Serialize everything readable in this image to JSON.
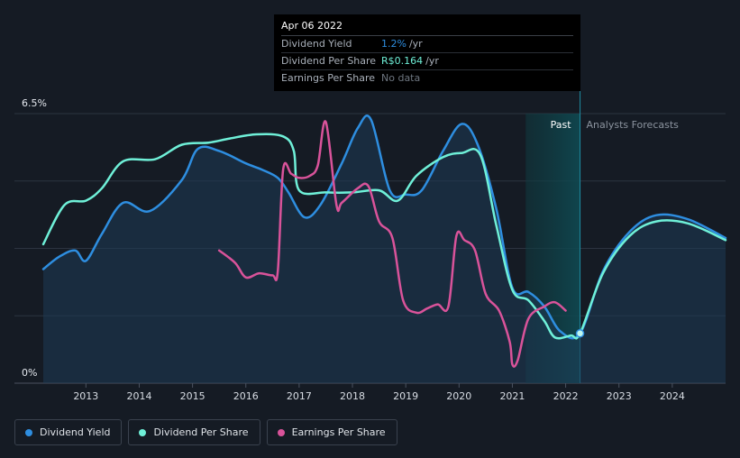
{
  "tooltip": {
    "date": "Apr 06 2022",
    "rows": [
      {
        "name": "Dividend Yield",
        "value": "1.2%",
        "unit": "/yr",
        "color": "#2e8ee0"
      },
      {
        "name": "Dividend Per Share",
        "value": "R$0.164",
        "unit": "/yr",
        "color": "#6ff0d8"
      },
      {
        "name": "Earnings Per Share",
        "value": "No data",
        "unit": "",
        "color": "#6e7680"
      }
    ]
  },
  "regions": {
    "past_label": "Past",
    "forecast_label": "Analysts Forecasts"
  },
  "legend": [
    {
      "label": "Dividend Yield",
      "color": "#2e8ee0"
    },
    {
      "label": "Dividend Per Share",
      "color": "#6ff0d8"
    },
    {
      "label": "Earnings Per Share",
      "color": "#d9539a"
    }
  ],
  "chart_data": {
    "type": "line",
    "y_axis_labels": {
      "top": "6.5%",
      "bottom": "0%"
    },
    "ylim": [
      0,
      6.5
    ],
    "xlim": [
      2012.2,
      2025.0
    ],
    "x_ticks": [
      "2013",
      "2014",
      "2015",
      "2016",
      "2017",
      "2018",
      "2019",
      "2020",
      "2021",
      "2022",
      "2023",
      "2024"
    ],
    "past_region": [
      2021.25,
      2022.27
    ],
    "grid": true,
    "legend_position": "bottom-left",
    "series": [
      {
        "name": "Dividend Yield",
        "color": "#2e8ee0",
        "area": true,
        "points": [
          [
            2012.2,
            2.75
          ],
          [
            2012.5,
            3.05
          ],
          [
            2012.8,
            3.2
          ],
          [
            2013.0,
            2.95
          ],
          [
            2013.3,
            3.6
          ],
          [
            2013.7,
            4.35
          ],
          [
            2014.2,
            4.15
          ],
          [
            2014.8,
            4.9
          ],
          [
            2015.1,
            5.65
          ],
          [
            2015.5,
            5.6
          ],
          [
            2016.0,
            5.3
          ],
          [
            2016.3,
            5.15
          ],
          [
            2016.6,
            4.95
          ],
          [
            2016.8,
            4.6
          ],
          [
            2017.1,
            4.0
          ],
          [
            2017.4,
            4.3
          ],
          [
            2017.8,
            5.3
          ],
          [
            2018.1,
            6.15
          ],
          [
            2018.35,
            6.35
          ],
          [
            2018.7,
            4.65
          ],
          [
            2019.0,
            4.55
          ],
          [
            2019.3,
            4.65
          ],
          [
            2019.7,
            5.6
          ],
          [
            2020.05,
            6.25
          ],
          [
            2020.35,
            5.75
          ],
          [
            2020.7,
            4.2
          ],
          [
            2021.0,
            2.3
          ],
          [
            2021.3,
            2.2
          ],
          [
            2021.6,
            1.85
          ],
          [
            2021.9,
            1.25
          ],
          [
            2022.27,
            1.2
          ],
          [
            2022.7,
            2.7
          ],
          [
            2023.2,
            3.65
          ],
          [
            2023.7,
            4.05
          ],
          [
            2024.3,
            3.95
          ],
          [
            2025.0,
            3.5
          ]
        ]
      },
      {
        "name": "Dividend Per Share",
        "color": "#6ff0d8",
        "area": false,
        "points": [
          [
            2012.2,
            3.35
          ],
          [
            2012.6,
            4.3
          ],
          [
            2013.0,
            4.4
          ],
          [
            2013.3,
            4.7
          ],
          [
            2013.7,
            5.35
          ],
          [
            2014.3,
            5.4
          ],
          [
            2014.8,
            5.75
          ],
          [
            2015.3,
            5.8
          ],
          [
            2015.7,
            5.9
          ],
          [
            2016.2,
            6.0
          ],
          [
            2016.7,
            5.95
          ],
          [
            2016.9,
            5.6
          ],
          [
            2017.0,
            4.65
          ],
          [
            2017.5,
            4.6
          ],
          [
            2018.0,
            4.6
          ],
          [
            2018.5,
            4.65
          ],
          [
            2018.85,
            4.4
          ],
          [
            2019.2,
            5.0
          ],
          [
            2019.7,
            5.45
          ],
          [
            2020.05,
            5.55
          ],
          [
            2020.4,
            5.5
          ],
          [
            2020.7,
            3.8
          ],
          [
            2021.0,
            2.25
          ],
          [
            2021.3,
            2.0
          ],
          [
            2021.6,
            1.5
          ],
          [
            2021.8,
            1.1
          ],
          [
            2022.1,
            1.15
          ],
          [
            2022.27,
            1.2
          ],
          [
            2022.7,
            2.65
          ],
          [
            2023.2,
            3.55
          ],
          [
            2023.7,
            3.9
          ],
          [
            2024.3,
            3.85
          ],
          [
            2025.0,
            3.45
          ]
        ]
      },
      {
        "name": "Earnings Per Share",
        "color": "#d9539a",
        "area": false,
        "points": [
          [
            2015.5,
            3.2
          ],
          [
            2015.8,
            2.9
          ],
          [
            2016.0,
            2.55
          ],
          [
            2016.25,
            2.65
          ],
          [
            2016.5,
            2.6
          ],
          [
            2016.6,
            2.7
          ],
          [
            2016.7,
            5.15
          ],
          [
            2016.85,
            5.05
          ],
          [
            2017.0,
            4.95
          ],
          [
            2017.2,
            5.0
          ],
          [
            2017.35,
            5.25
          ],
          [
            2017.5,
            6.3
          ],
          [
            2017.7,
            4.3
          ],
          [
            2017.8,
            4.35
          ],
          [
            2018.1,
            4.7
          ],
          [
            2018.3,
            4.75
          ],
          [
            2018.5,
            3.9
          ],
          [
            2018.75,
            3.5
          ],
          [
            2018.95,
            2.0
          ],
          [
            2019.2,
            1.7
          ],
          [
            2019.4,
            1.8
          ],
          [
            2019.6,
            1.9
          ],
          [
            2019.8,
            1.85
          ],
          [
            2019.95,
            3.55
          ],
          [
            2020.1,
            3.45
          ],
          [
            2020.3,
            3.2
          ],
          [
            2020.5,
            2.15
          ],
          [
            2020.75,
            1.75
          ],
          [
            2020.95,
            1.0
          ],
          [
            2021.0,
            0.45
          ],
          [
            2021.1,
            0.55
          ],
          [
            2021.3,
            1.55
          ],
          [
            2021.6,
            1.85
          ],
          [
            2021.8,
            1.95
          ],
          [
            2022.0,
            1.75
          ]
        ]
      }
    ],
    "highlight_point": {
      "x": 2022.27,
      "y": 1.2
    }
  }
}
